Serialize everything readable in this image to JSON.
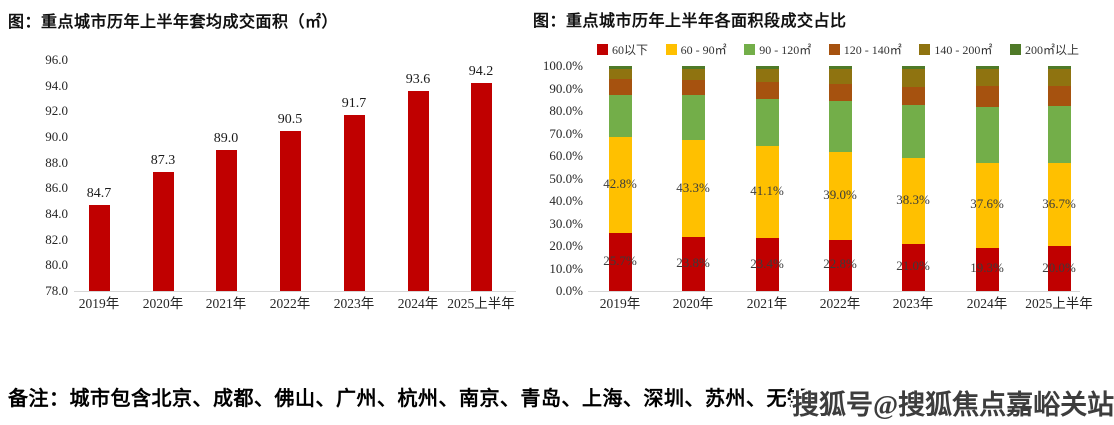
{
  "note": {
    "text": "备注：城市包含北京、成都、佛山、广州、杭州、南京、青岛、上海、深圳、苏州、无锡"
  },
  "watermark": {
    "text": "搜狐号@搜狐焦点嘉峪关站"
  },
  "chart_data": [
    {
      "type": "bar",
      "title": "图：重点城市历年上半年套均成交面积（㎡）",
      "categories": [
        "2019年",
        "2020年",
        "2021年",
        "2022年",
        "2023年",
        "2024年",
        "2025上半年"
      ],
      "values": [
        84.7,
        87.3,
        89.0,
        90.5,
        91.7,
        93.6,
        94.2
      ],
      "data_labels": [
        "84.7",
        "87.3",
        "89.0",
        "90.5",
        "91.7",
        "93.6",
        "94.2"
      ],
      "ylim": [
        78.0,
        96.0
      ],
      "yticks": [
        "96.0",
        "94.0",
        "92.0",
        "90.0",
        "88.0",
        "86.0",
        "84.0",
        "82.0",
        "80.0",
        "78.0"
      ],
      "bar_color": "#C00000",
      "grid": false,
      "legend": "none"
    },
    {
      "type": "stacked-bar",
      "title": "图：重点城市历年上半年各面积段成交占比",
      "categories": [
        "2019年",
        "2020年",
        "2021年",
        "2022年",
        "2023年",
        "2024年",
        "2025上半年"
      ],
      "ylim": [
        0,
        100
      ],
      "yticks": [
        "100.0%",
        "90.0%",
        "80.0%",
        "70.0%",
        "60.0%",
        "50.0%",
        "40.0%",
        "30.0%",
        "20.0%",
        "10.0%",
        "0.0%"
      ],
      "grid": false,
      "legend_position": "top",
      "series": [
        {
          "name": "60以下",
          "color": "#C00000",
          "values": [
            25.7,
            23.8,
            23.4,
            22.8,
            21.0,
            19.3,
            20.0
          ],
          "labels": [
            "25.7%",
            "23.8%",
            "23.4%",
            "22.8%",
            "21.0%",
            "19.3%",
            "20.0%"
          ]
        },
        {
          "name": "60 - 90㎡",
          "color": "#FFC000",
          "values": [
            42.8,
            43.3,
            41.1,
            39.0,
            38.3,
            37.6,
            36.7
          ],
          "labels": [
            "42.8%",
            "43.3%",
            "41.1%",
            "39.0%",
            "38.3%",
            "37.6%",
            "36.7%"
          ]
        },
        {
          "name": "90 - 120㎡",
          "color": "#73AE49",
          "values": [
            18.8,
            19.9,
            21.0,
            22.6,
            23.2,
            25.0,
            25.4
          ]
        },
        {
          "name": "120 - 140㎡",
          "color": "#A6520F",
          "values": [
            7.1,
            6.7,
            7.5,
            7.5,
            8.2,
            9.4,
            8.9
          ]
        },
        {
          "name": "140 - 200㎡",
          "color": "#8F7310",
          "values": [
            4.4,
            4.9,
            5.5,
            6.9,
            8.0,
            7.4,
            7.7
          ]
        },
        {
          "name": "200㎡以上",
          "color": "#4F7A28",
          "values": [
            1.2,
            1.4,
            1.5,
            1.2,
            1.3,
            1.3,
            1.3
          ]
        }
      ]
    }
  ]
}
